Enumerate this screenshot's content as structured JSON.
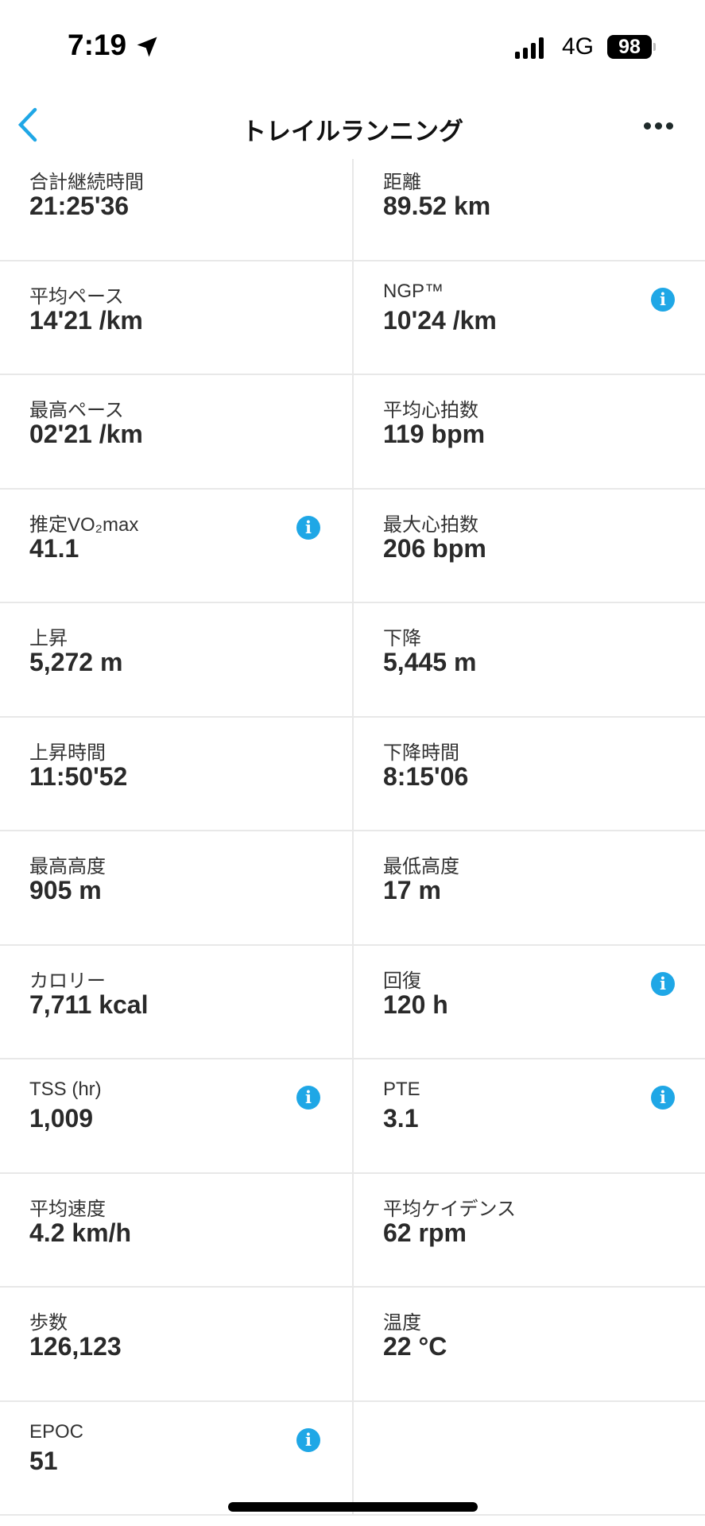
{
  "status_bar": {
    "time": "7:19",
    "network": "4G",
    "battery": "98",
    "signal_bars": 4
  },
  "header": {
    "title": "トレイルランニング",
    "back_icon": "chevron-left-icon",
    "more_icon": "ellipsis-icon"
  },
  "accent_color": "#1fa7e6",
  "stats": [
    [
      {
        "label": "合計継続時間",
        "value": "21:25'36",
        "info": false
      },
      {
        "label": "距離",
        "value": "89.52 km",
        "info": false
      }
    ],
    [
      {
        "label": "平均ペース",
        "value": "14'21 /km",
        "info": false
      },
      {
        "label": "NGP™",
        "value": "10'24 /km",
        "info": true
      }
    ],
    [
      {
        "label": "最高ペース",
        "value": "02'21 /km",
        "info": false
      },
      {
        "label": "平均心拍数",
        "value": "119 bpm",
        "info": false
      }
    ],
    [
      {
        "label": "推定VO₂max",
        "value": "41.1",
        "info": true
      },
      {
        "label": "最大心拍数",
        "value": "206 bpm",
        "info": false
      }
    ],
    [
      {
        "label": "上昇",
        "value": "5,272 m",
        "info": false
      },
      {
        "label": "下降",
        "value": "5,445 m",
        "info": false
      }
    ],
    [
      {
        "label": "上昇時間",
        "value": "11:50'52",
        "info": false
      },
      {
        "label": "下降時間",
        "value": "8:15'06",
        "info": false
      }
    ],
    [
      {
        "label": "最高高度",
        "value": "905 m",
        "info": false
      },
      {
        "label": "最低高度",
        "value": "17 m",
        "info": false
      }
    ],
    [
      {
        "label": "カロリー",
        "value": "7,711 kcal",
        "info": false
      },
      {
        "label": "回復",
        "value": "120 h",
        "info": true
      }
    ],
    [
      {
        "label": "TSS (hr)",
        "value": "1,009",
        "info": true
      },
      {
        "label": "PTE",
        "value": "3.1",
        "info": true
      }
    ],
    [
      {
        "label": "平均速度",
        "value": "4.2 km/h",
        "info": false
      },
      {
        "label": "平均ケイデンス",
        "value": "62 rpm",
        "info": false
      }
    ],
    [
      {
        "label": "歩数",
        "value": "126,123",
        "info": false
      },
      {
        "label": "温度",
        "value": "22 °C",
        "info": false
      }
    ],
    [
      {
        "label": "EPOC",
        "value": "51",
        "info": true
      },
      null
    ]
  ],
  "info_glyph": "i"
}
